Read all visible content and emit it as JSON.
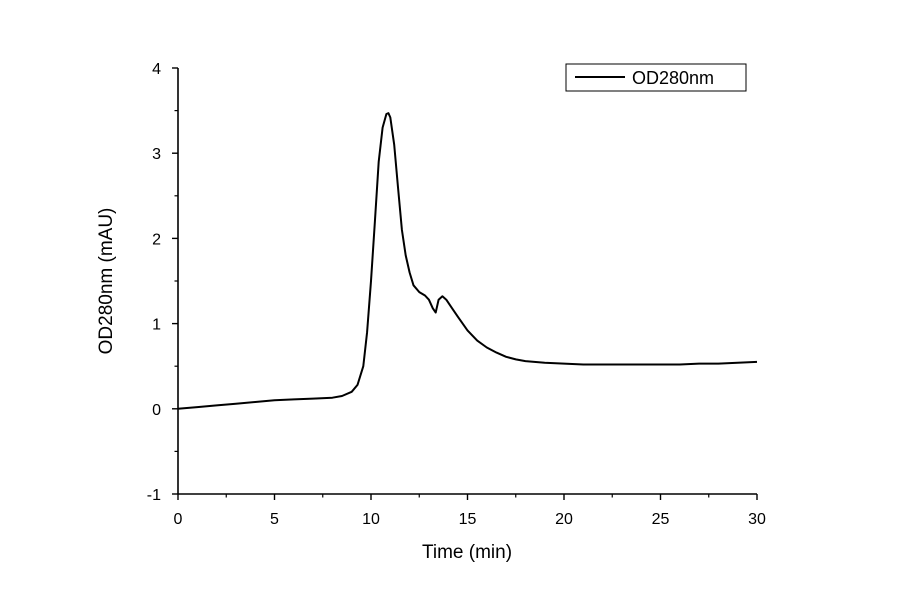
{
  "chart_data": {
    "type": "line",
    "title": "",
    "xlabel": "Time (min)",
    "ylabel": "OD280nm (mAU)",
    "xlim": [
      0,
      30
    ],
    "ylim": [
      -1,
      4
    ],
    "x_ticks": [
      0,
      5,
      10,
      15,
      20,
      25,
      30
    ],
    "y_ticks": [
      -1,
      0,
      1,
      2,
      3,
      4
    ],
    "x_tick_labels": [
      "0",
      "5",
      "10",
      "15",
      "20",
      "25",
      "30"
    ],
    "y_tick_labels": [
      "-1",
      "0",
      "1",
      "2",
      "3",
      "4"
    ],
    "grid": false,
    "legend": {
      "position": "top-right",
      "entries": [
        "OD280nm"
      ]
    },
    "line_color": "#000000",
    "series": [
      {
        "name": "OD280nm",
        "x": [
          0,
          1,
          2,
          3,
          4,
          5,
          6,
          7,
          8,
          8.5,
          9,
          9.3,
          9.6,
          9.8,
          10.0,
          10.2,
          10.4,
          10.6,
          10.8,
          10.9,
          11.0,
          11.2,
          11.4,
          11.6,
          11.8,
          12.0,
          12.2,
          12.5,
          12.8,
          13.0,
          13.2,
          13.35,
          13.5,
          13.7,
          13.9,
          14.2,
          14.5,
          15.0,
          15.5,
          16.0,
          16.5,
          17.0,
          17.5,
          18.0,
          19.0,
          20.0,
          21.0,
          22.0,
          23.0,
          24.0,
          25.0,
          26.0,
          27.0,
          28.0,
          29.0,
          30.0
        ],
        "y": [
          0.0,
          0.02,
          0.04,
          0.06,
          0.08,
          0.1,
          0.11,
          0.12,
          0.13,
          0.15,
          0.2,
          0.28,
          0.5,
          0.9,
          1.5,
          2.2,
          2.9,
          3.3,
          3.46,
          3.47,
          3.42,
          3.1,
          2.6,
          2.1,
          1.8,
          1.6,
          1.45,
          1.37,
          1.33,
          1.28,
          1.18,
          1.13,
          1.28,
          1.32,
          1.28,
          1.18,
          1.08,
          0.92,
          0.8,
          0.72,
          0.66,
          0.61,
          0.58,
          0.56,
          0.54,
          0.53,
          0.52,
          0.52,
          0.52,
          0.52,
          0.52,
          0.52,
          0.53,
          0.53,
          0.54,
          0.55
        ]
      }
    ]
  }
}
